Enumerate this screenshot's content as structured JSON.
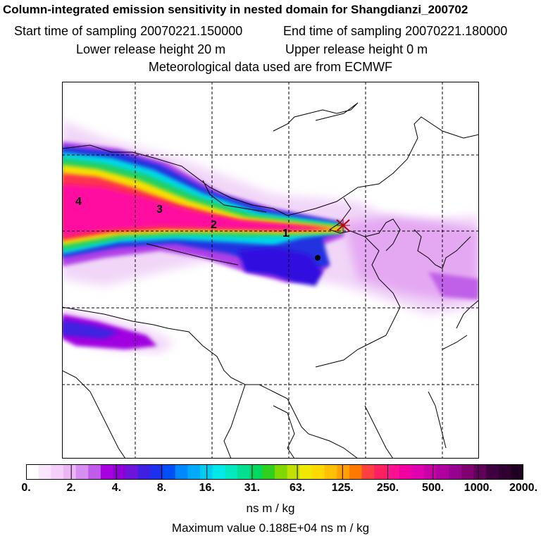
{
  "header": {
    "title": "Column-integrated emission sensitivity in nested domain for Shangdianzi_200702",
    "start_label": "Start time of sampling 20070221.150000",
    "end_label": "End time of sampling 20070221.180000",
    "lower_label": "Lower release height   20 m",
    "upper_label": "Upper release height    0 m",
    "met_label": "Meteorological data used are from ECMWF"
  },
  "map": {
    "markers": [
      "1",
      "2",
      "3",
      "4"
    ],
    "colors": {
      "plume_low": "#e9b8f5",
      "plume_purple": "#a000e0",
      "plume_blue": "#2020e0",
      "plume_cyan": "#00e0e0",
      "plume_green": "#00c060",
      "plume_yellow": "#f8e000",
      "plume_red": "#ff2050",
      "plume_magenta": "#ff10a0"
    }
  },
  "colorbar": {
    "ticks": [
      "0.",
      "2.",
      "4.",
      "8.",
      "16.",
      "31.",
      "63.",
      "125.",
      "250.",
      "500.",
      "1000.",
      "2000."
    ],
    "units": "ns m / kg",
    "colors": [
      "#ffffff",
      "#fbe7fd",
      "#f4cff9",
      "#ecb6f6",
      "#d68ef0",
      "#c05de8",
      "#a800e0",
      "#8e00d6",
      "#6a14dc",
      "#4020e0",
      "#1c30f0",
      "#0050f8",
      "#0088ff",
      "#00aaf8",
      "#00ccf0",
      "#00e8e8",
      "#00e8c0",
      "#00e090",
      "#00d860",
      "#30d020",
      "#80d800",
      "#c0e000",
      "#f0e800",
      "#ffd800",
      "#ffc000",
      "#ffa000",
      "#ff7800",
      "#ff4040",
      "#ff2060",
      "#ff1090",
      "#f000a0",
      "#e000b0",
      "#c800a8",
      "#b000a0",
      "#980090",
      "#800070",
      "#600058",
      "#400040",
      "#300030",
      "#200020"
    ]
  },
  "footer": {
    "max_value": "Maximum value  0.188E+04 ns m / kg"
  }
}
